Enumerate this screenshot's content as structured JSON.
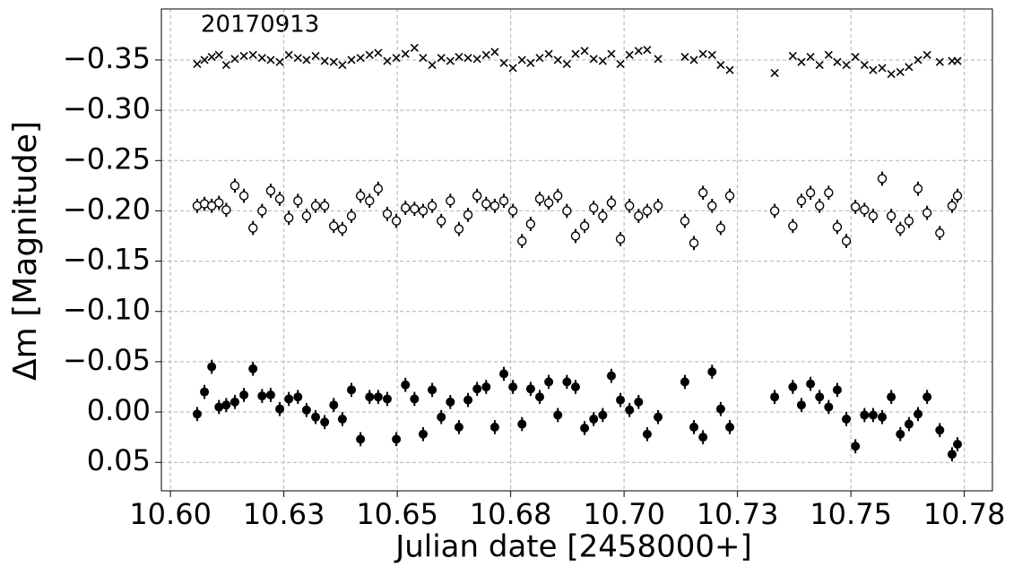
{
  "chart_data": {
    "type": "scatter",
    "annotation": "20170913",
    "xlabel": "Julian date [2458000+]",
    "ylabel": "Δm [Magnitude]",
    "xlim": [
      10.598,
      10.7812
    ],
    "ylim": [
      -0.4007,
      0.0783
    ],
    "y_inverted": true,
    "grid": true,
    "xticks": [
      {
        "value": 10.6,
        "label": "10.60"
      },
      {
        "value": 10.625,
        "label": "10.63"
      },
      {
        "value": 10.65,
        "label": "10.65"
      },
      {
        "value": 10.675,
        "label": "10.68"
      },
      {
        "value": 10.7,
        "label": "10.70"
      },
      {
        "value": 10.725,
        "label": "10.73"
      },
      {
        "value": 10.75,
        "label": "10.75"
      },
      {
        "value": 10.775,
        "label": "10.78"
      }
    ],
    "yticks": [
      {
        "value": -0.35,
        "label": "−0.35"
      },
      {
        "value": -0.3,
        "label": "−0.30"
      },
      {
        "value": -0.25,
        "label": "−0.25"
      },
      {
        "value": -0.2,
        "label": "−0.20"
      },
      {
        "value": -0.15,
        "label": "−0.15"
      },
      {
        "value": -0.1,
        "label": "−0.10"
      },
      {
        "value": -0.05,
        "label": "−0.05"
      },
      {
        "value": 0,
        "label": "0.00"
      },
      {
        "value": 0.05,
        "label": "0.05"
      }
    ],
    "x": [
      10.6059,
      10.6075,
      10.6091,
      10.6107,
      10.6123,
      10.6142,
      10.6162,
      10.6182,
      10.6202,
      10.6221,
      10.6241,
      10.6261,
      10.6281,
      10.63,
      10.632,
      10.634,
      10.636,
      10.6379,
      10.6399,
      10.6419,
      10.6439,
      10.6458,
      10.6478,
      10.6498,
      10.6518,
      10.6538,
      10.6557,
      10.6577,
      10.6597,
      10.6617,
      10.6636,
      10.6656,
      10.6676,
      10.6696,
      10.6715,
      10.6735,
      10.6755,
      10.6775,
      10.6794,
      10.6814,
      10.6834,
      10.6854,
      10.6874,
      10.6893,
      10.6913,
      10.6933,
      10.6953,
      10.6972,
      10.6992,
      10.7012,
      10.7032,
      10.7051,
      10.7075,
      10.7134,
      10.7154,
      10.7174,
      10.7194,
      10.7213,
      10.7233,
      10.7332,
      10.7372,
      10.7391,
      10.7411,
      10.7431,
      10.7451,
      10.747,
      10.749,
      10.751,
      10.753,
      10.7549,
      10.7569,
      10.7589,
      10.7609,
      10.7628,
      10.7648,
      10.7668,
      10.7696,
      10.7723,
      10.7735
    ],
    "series": [
      {
        "marker": "x",
        "color": "#000000",
        "values": [
          -0.346,
          -0.35,
          -0.353,
          -0.355,
          -0.345,
          -0.351,
          -0.354,
          -0.355,
          -0.352,
          -0.35,
          -0.348,
          -0.355,
          -0.352,
          -0.35,
          -0.354,
          -0.349,
          -0.348,
          -0.345,
          -0.35,
          -0.352,
          -0.355,
          -0.357,
          -0.349,
          -0.352,
          -0.356,
          -0.362,
          -0.352,
          -0.345,
          -0.352,
          -0.349,
          -0.353,
          -0.352,
          -0.351,
          -0.355,
          -0.358,
          -0.347,
          -0.342,
          -0.35,
          -0.347,
          -0.352,
          -0.356,
          -0.35,
          -0.346,
          -0.356,
          -0.359,
          -0.351,
          -0.349,
          -0.356,
          -0.346,
          -0.355,
          -0.359,
          -0.36,
          -0.351,
          -0.353,
          -0.35,
          -0.356,
          -0.355,
          -0.345,
          -0.34,
          -0.337,
          -0.354,
          -0.348,
          -0.353,
          -0.345,
          -0.355,
          -0.348,
          -0.345,
          -0.353,
          -0.345,
          -0.34,
          -0.342,
          -0.336,
          -0.338,
          -0.343,
          -0.35,
          -0.355,
          -0.348,
          -0.349,
          -0.349
        ]
      },
      {
        "marker": "open",
        "color": "#000000",
        "error": 0.007,
        "values": [
          -0.205,
          -0.207,
          -0.205,
          -0.208,
          -0.201,
          -0.225,
          -0.215,
          -0.183,
          -0.2,
          -0.22,
          -0.212,
          -0.193,
          -0.21,
          -0.195,
          -0.205,
          -0.205,
          -0.185,
          -0.182,
          -0.195,
          -0.215,
          -0.21,
          -0.222,
          -0.197,
          -0.19,
          -0.203,
          -0.202,
          -0.2,
          -0.205,
          -0.19,
          -0.21,
          -0.182,
          -0.196,
          -0.215,
          -0.207,
          -0.205,
          -0.21,
          -0.2,
          -0.17,
          -0.187,
          -0.212,
          -0.208,
          -0.215,
          -0.2,
          -0.175,
          -0.185,
          -0.203,
          -0.195,
          -0.208,
          -0.172,
          -0.205,
          -0.195,
          -0.2,
          -0.205,
          -0.19,
          -0.168,
          -0.218,
          -0.205,
          -0.183,
          -0.215,
          -0.2,
          -0.185,
          -0.21,
          -0.218,
          -0.205,
          -0.218,
          -0.184,
          -0.17,
          -0.204,
          -0.201,
          -0.195,
          -0.232,
          -0.195,
          -0.182,
          -0.19,
          -0.222,
          -0.198,
          -0.178,
          -0.205,
          -0.215
        ]
      },
      {
        "marker": "filled",
        "color": "#000000",
        "error": 0.007,
        "values": [
          0.002,
          -0.02,
          -0.045,
          -0.005,
          -0.007,
          -0.01,
          -0.017,
          -0.043,
          -0.016,
          -0.017,
          -0.003,
          -0.013,
          -0.015,
          -0.002,
          0.005,
          0.01,
          -0.007,
          0.007,
          -0.022,
          0.027,
          -0.015,
          -0.015,
          -0.013,
          0.027,
          -0.027,
          -0.013,
          0.022,
          -0.022,
          0.005,
          -0.01,
          0.015,
          -0.012,
          -0.023,
          -0.025,
          0.015,
          -0.038,
          -0.025,
          0.012,
          -0.023,
          -0.015,
          -0.03,
          0.003,
          -0.03,
          -0.025,
          0.016,
          0.007,
          0.003,
          -0.036,
          -0.012,
          -0.002,
          -0.01,
          0.022,
          0.005,
          -0.03,
          0.015,
          0.025,
          -0.04,
          -0.003,
          0.015,
          -0.015,
          -0.025,
          -0.007,
          -0.028,
          -0.015,
          -0.005,
          -0.022,
          0.007,
          0.034,
          0.003,
          0.003,
          0.005,
          -0.015,
          0.022,
          0.012,
          0.002,
          -0.015,
          0.018,
          0.042,
          0.032
        ]
      }
    ]
  }
}
